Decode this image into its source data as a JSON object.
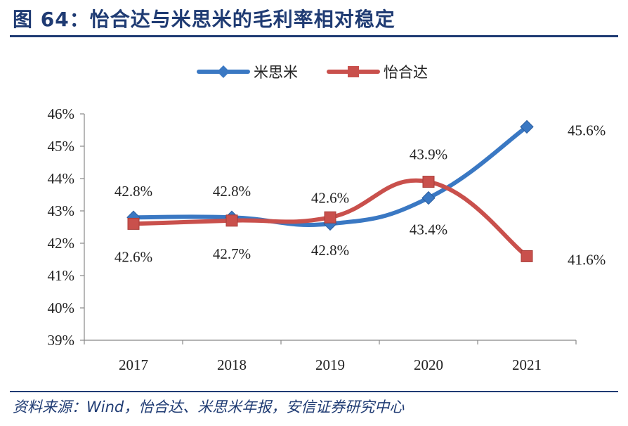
{
  "figure": {
    "title": "图 64：怡合达与米思米的毛利率相对稳定",
    "source": "资料来源：Wind，怡合达、米思米年报，安信证券研究中心"
  },
  "chart_data": {
    "type": "line",
    "categories": [
      "2017",
      "2018",
      "2019",
      "2020",
      "2021"
    ],
    "ylim": [
      39,
      46
    ],
    "yticks": [
      39,
      40,
      41,
      42,
      43,
      44,
      45,
      46
    ],
    "ytick_labels": [
      "39%",
      "40%",
      "41%",
      "42%",
      "43%",
      "44%",
      "45%",
      "46%"
    ],
    "legend_position": "top-center",
    "grid": false,
    "series": [
      {
        "name": "米思米",
        "color": "#3a78c3",
        "marker": "diamond",
        "values": [
          42.8,
          42.8,
          42.6,
          43.4,
          45.6
        ],
        "labels": [
          "42.8%",
          "42.8%",
          "42.6%",
          "43.4%",
          "45.6%"
        ]
      },
      {
        "name": "怡合达",
        "color": "#c9504c",
        "marker": "square",
        "values": [
          42.6,
          42.7,
          42.8,
          43.9,
          41.6
        ],
        "labels": [
          "42.6%",
          "42.7%",
          "42.8%",
          "43.9%",
          "41.6%"
        ]
      }
    ]
  }
}
